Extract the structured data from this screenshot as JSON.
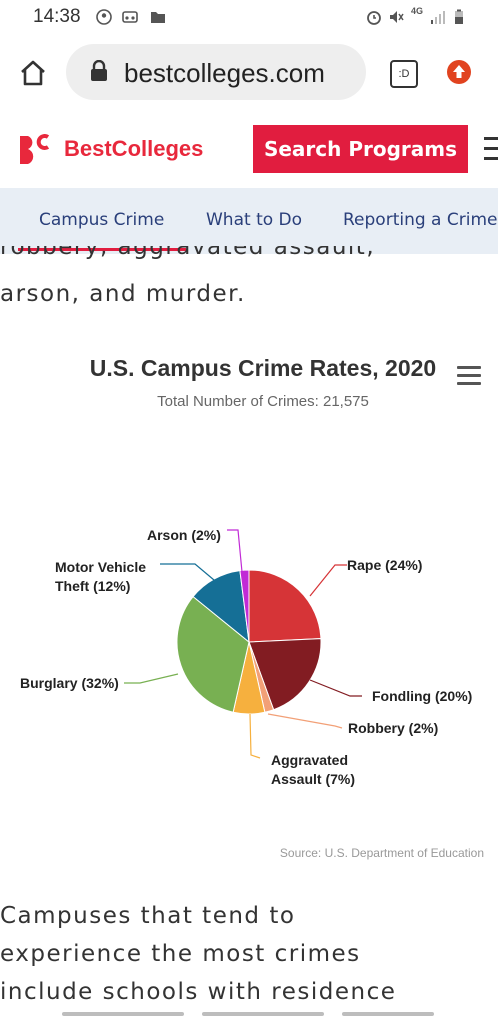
{
  "status_bar": {
    "time": "14:38",
    "network": "4G"
  },
  "browser": {
    "url": "bestcolleges.com",
    "tab_switcher_label": ":D"
  },
  "site": {
    "brand_name": "BestColleges",
    "search_button": "Search Programs",
    "tabs": [
      "Campus Crime",
      "What to Do",
      "Reporting a Crime"
    ]
  },
  "article": {
    "line1": "robbery, aggravated assault,",
    "line2": "arson, and murder.",
    "line3": "Campuses that tend to",
    "line4": "experience the most crimes",
    "line5": "include schools with residence"
  },
  "colors": {
    "brand_red": "#e11d3f",
    "tab_bg": "#e8eef5",
    "tab_text": "#2a3f7a"
  },
  "chart_data": {
    "type": "pie",
    "title": "U.S. Campus Crime Rates, 2020",
    "subtitle": "Total Number of Crimes: 21,575",
    "source": "Source: U.S. Department of Education",
    "slices": [
      {
        "label": "Rape (24%)",
        "value": 24,
        "color": "#d63437"
      },
      {
        "label": "Fondling (20%)",
        "value": 20,
        "color": "#821c22"
      },
      {
        "label": "Robbery (2%)",
        "value": 2,
        "color": "#f2a077"
      },
      {
        "label": "Aggravated Assault (7%)",
        "value": 7,
        "color": "#f6b03e"
      },
      {
        "label": "Burglary (32%)",
        "value": 32,
        "color": "#78b052"
      },
      {
        "label": "Motor Vehicle Theft (12%)",
        "value": 12,
        "color": "#156f96"
      },
      {
        "label": "Arson (2%)",
        "value": 2,
        "color": "#c12ad6"
      }
    ]
  }
}
